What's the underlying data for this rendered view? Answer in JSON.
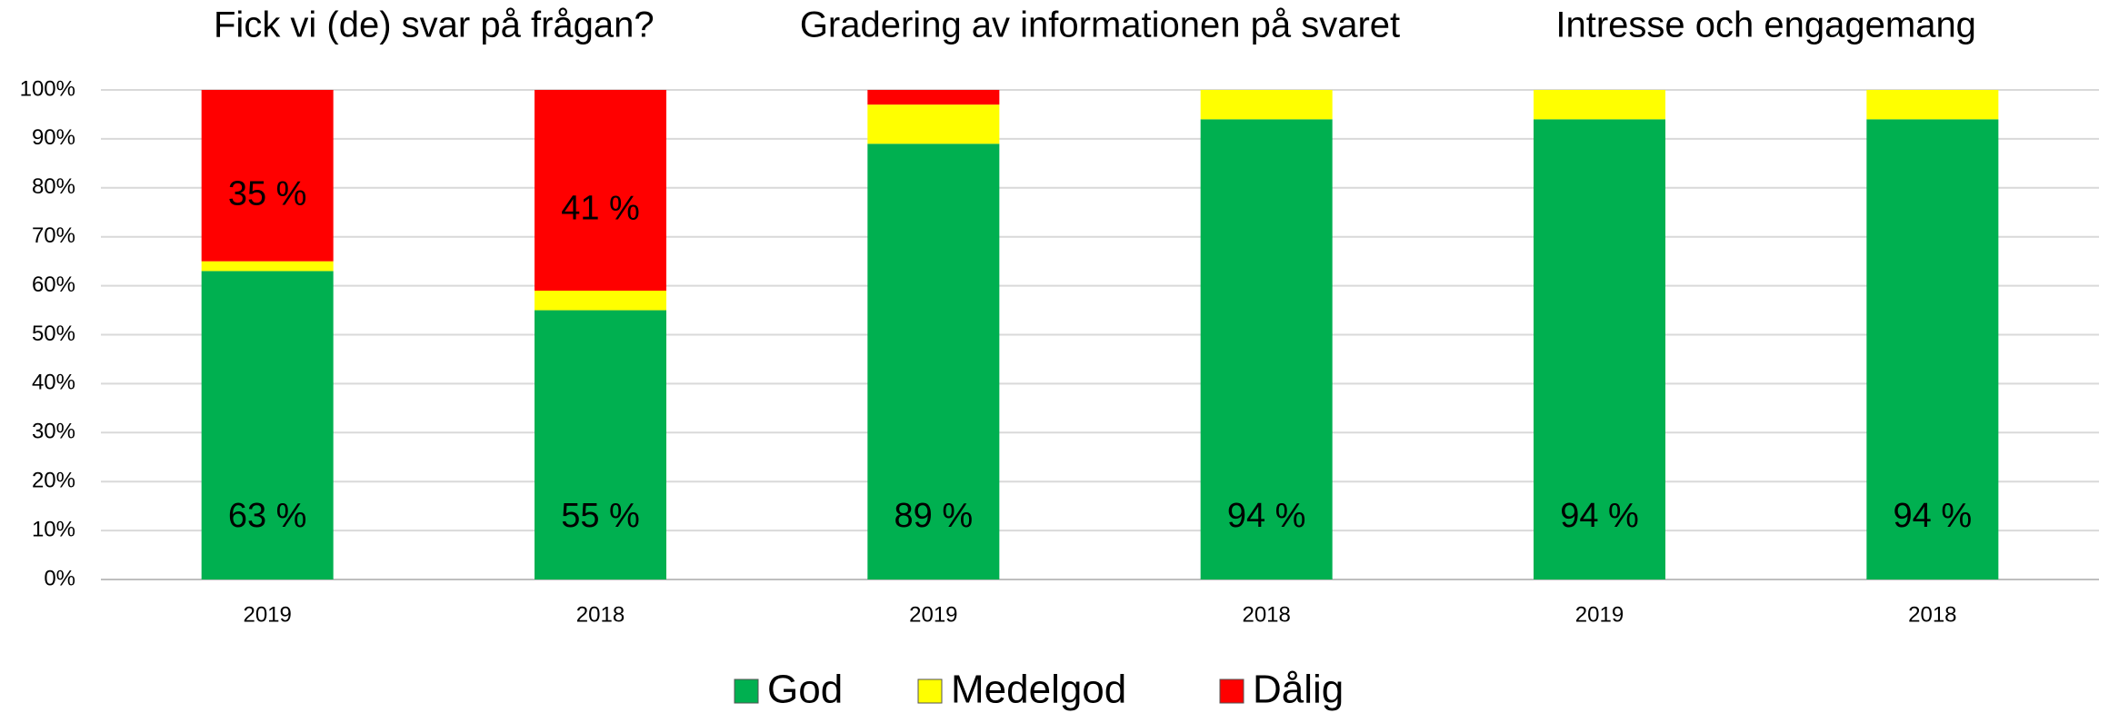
{
  "chart_data": {
    "type": "stacked_bar",
    "group_titles": [
      "Fick vi (de) svar på frågan?",
      "Gradering av informationen på svaret",
      "Intresse och engagemang"
    ],
    "categories": [
      "2019",
      "2018",
      "2019",
      "2018",
      "2019",
      "2018"
    ],
    "series": [
      {
        "name": "God",
        "color": "#00b050",
        "values": [
          63,
          55,
          89,
          94,
          94,
          94
        ],
        "value_labels": [
          "63 %",
          "55 %",
          "89 %",
          "94 %",
          "94 %",
          "94 %"
        ]
      },
      {
        "name": "Medelgod",
        "color": "#ffff00",
        "values": [
          2,
          4,
          8,
          6,
          6,
          6
        ]
      },
      {
        "name": "Dålig",
        "color": "#ff0000",
        "values": [
          35,
          41,
          3,
          0,
          0,
          0
        ],
        "value_labels": [
          "35 %",
          "41 %",
          null,
          null,
          null,
          null
        ]
      }
    ],
    "ylim": [
      0,
      100
    ],
    "yticks": [
      {
        "value": 0,
        "label": "0%"
      },
      {
        "value": 10,
        "label": "10%"
      },
      {
        "value": 20,
        "label": "20%"
      },
      {
        "value": 30,
        "label": "30%"
      },
      {
        "value": 40,
        "label": "40%"
      },
      {
        "value": 50,
        "label": "50%"
      },
      {
        "value": 60,
        "label": "60%"
      },
      {
        "value": 70,
        "label": "70%"
      },
      {
        "value": 80,
        "label": "80%"
      },
      {
        "value": 90,
        "label": "90%"
      },
      {
        "value": 100,
        "label": "100%"
      }
    ],
    "grid": true,
    "legend": "bottom"
  }
}
